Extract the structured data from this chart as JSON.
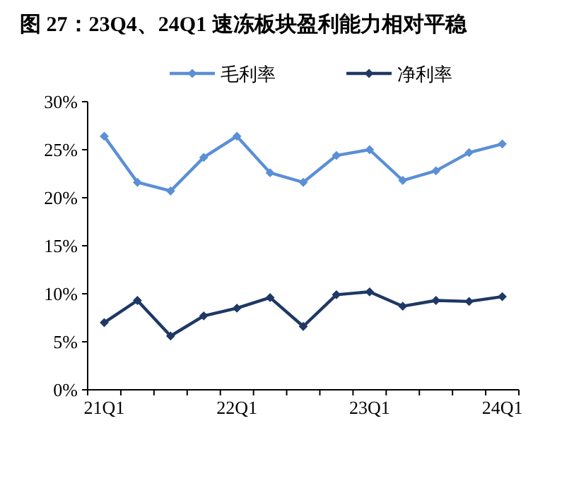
{
  "chart_data": {
    "type": "line",
    "title": "图 27：23Q4、24Q1 速冻板块盈利能力相对平稳",
    "categories": [
      "21Q1",
      null,
      null,
      null,
      "22Q1",
      null,
      null,
      null,
      "23Q1",
      null,
      null,
      null,
      "24Q1"
    ],
    "series": [
      {
        "name": "毛利率",
        "color": "#5b8fd6",
        "values": [
          26.4,
          21.6,
          20.7,
          24.2,
          26.4,
          22.6,
          21.6,
          24.4,
          25.0,
          21.8,
          22.8,
          24.7,
          25.6
        ]
      },
      {
        "name": "净利率",
        "color": "#1f3864",
        "values": [
          7.0,
          9.3,
          5.6,
          7.7,
          8.5,
          9.6,
          6.6,
          9.9,
          10.2,
          8.7,
          9.3,
          9.2,
          9.7
        ]
      }
    ],
    "ylim": [
      0,
      30
    ],
    "yticks": [
      {
        "value": 0,
        "label": "0%"
      },
      {
        "value": 5,
        "label": "5%"
      },
      {
        "value": 10,
        "label": "10%"
      },
      {
        "value": 15,
        "label": "15%"
      },
      {
        "value": 20,
        "label": "20%"
      },
      {
        "value": 25,
        "label": "25%"
      },
      {
        "value": 30,
        "label": "30%"
      }
    ],
    "grid": false,
    "legend": "top",
    "marker": "diamond",
    "line_style": "solid"
  }
}
